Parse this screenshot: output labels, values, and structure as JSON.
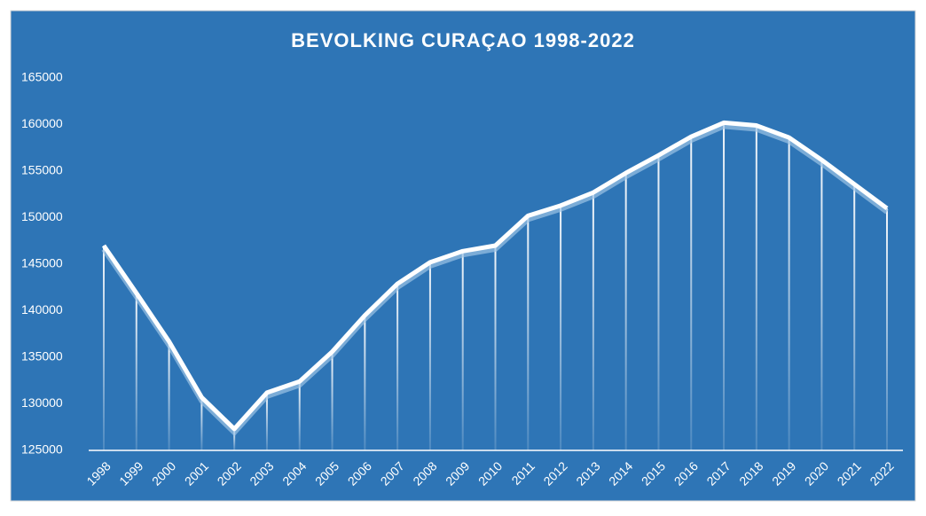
{
  "chart_data": {
    "type": "line",
    "title": "BEVOLKING  CURAÇAO 1998-2022",
    "categories": [
      "1998",
      "1999",
      "2000",
      "2001",
      "2002",
      "2003",
      "2004",
      "2005",
      "2006",
      "2007",
      "2008",
      "2009",
      "2010",
      "2011",
      "2012",
      "2013",
      "2014",
      "2015",
      "2016",
      "2017",
      "2018",
      "2019",
      "2020",
      "2021",
      "2022"
    ],
    "values": [
      147000,
      141900,
      136700,
      130700,
      127300,
      131200,
      132400,
      135600,
      139500,
      142900,
      145200,
      146400,
      147000,
      150200,
      151300,
      152700,
      154800,
      156700,
      158700,
      160200,
      159900,
      158600,
      156200,
      153600,
      151000
    ],
    "color": "#ffffff",
    "ylim": [
      125000,
      165000
    ],
    "yticks": [
      125000,
      130000,
      135000,
      140000,
      145000,
      150000,
      155000,
      160000,
      165000
    ],
    "drop_lines": true
  }
}
